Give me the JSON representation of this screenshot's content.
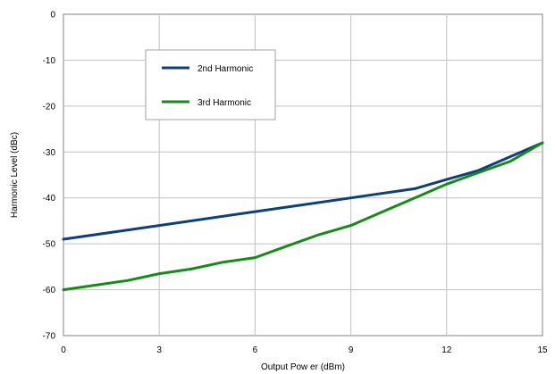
{
  "chart_data": {
    "type": "line",
    "xlabel": "Output Pow er (dBm)",
    "ylabel": "Harmonic Level (dBc)",
    "xlim": [
      0,
      15
    ],
    "ylim": [
      -70,
      0
    ],
    "x_ticks": [
      0,
      3,
      6,
      9,
      12,
      15
    ],
    "y_ticks": [
      0,
      -10,
      -20,
      -30,
      -40,
      -50,
      -60,
      -70
    ],
    "grid": true,
    "legend_position": "top-left",
    "series": [
      {
        "name": "2nd Harmonic",
        "color": "#0e3f7a",
        "x": [
          0,
          3,
          6,
          9,
          11,
          12,
          13,
          14,
          15
        ],
        "y": [
          -49,
          -46,
          -43,
          -40,
          -38,
          -36,
          -34,
          -31,
          -28
        ]
      },
      {
        "name": "3rd Harmonic",
        "color": "#178a17",
        "x": [
          0,
          2,
          3,
          4,
          5,
          6,
          7,
          8,
          9,
          10,
          11,
          12,
          13,
          14,
          15
        ],
        "y": [
          -60,
          -58,
          -56.5,
          -55.5,
          -54,
          -53,
          -50.5,
          -48,
          -46,
          -43,
          -40,
          -37,
          -34.5,
          -32,
          -28
        ]
      }
    ]
  }
}
